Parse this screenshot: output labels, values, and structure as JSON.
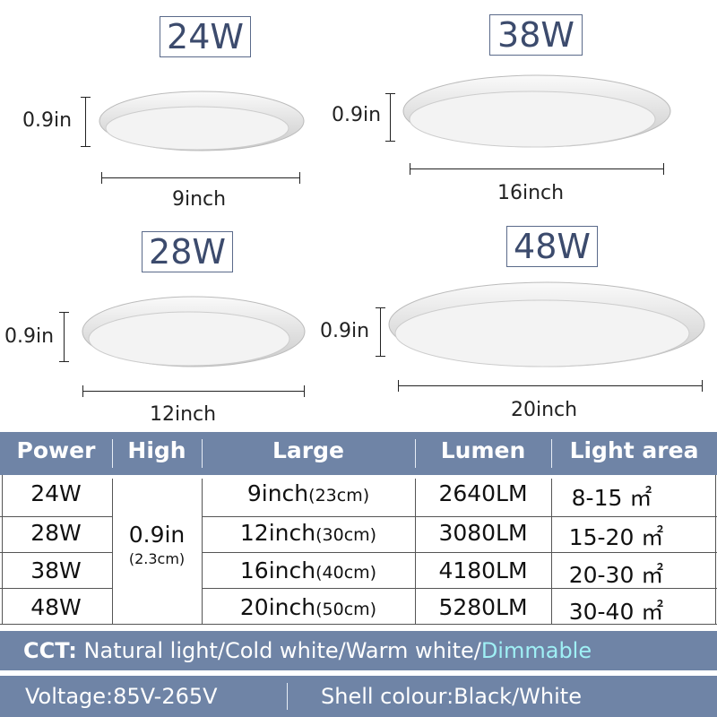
{
  "products": [
    {
      "power": "24W",
      "height": "0.9in",
      "diameter": "9inch"
    },
    {
      "power": "38W",
      "height": "0.9in",
      "diameter": "16inch"
    },
    {
      "power": "28W",
      "height": "0.9in",
      "diameter": "12inch"
    },
    {
      "power": "48W",
      "height": "0.9in",
      "diameter": "20inch"
    }
  ],
  "table": {
    "headers": [
      "Power",
      "High",
      "Large",
      "Lumen",
      "Light area"
    ],
    "high": "0.9in",
    "high_cm": "(2.3cm)",
    "rows": [
      {
        "power": "24W",
        "large": "9inch",
        "large_cm": "(23cm)",
        "lumen": "2640LM",
        "area": "8-15 ㎡"
      },
      {
        "power": "28W",
        "large": "12inch",
        "large_cm": "(30cm)",
        "lumen": "3080LM",
        "area": "15-20 ㎡"
      },
      {
        "power": "38W",
        "large": "16inch",
        "large_cm": "(40cm)",
        "lumen": "4180LM",
        "area": "20-30 ㎡"
      },
      {
        "power": "48W",
        "large": "20inch",
        "large_cm": "(50cm)",
        "lumen": "5280LM",
        "area": "30-40 ㎡"
      }
    ]
  },
  "cct": {
    "label": "CCT:",
    "options": "Natural light/Cold white/Warm white/",
    "highlight": "Dimmable",
    "highlight_color": "#9ff0f5"
  },
  "voltage": "Voltage:85V-265V",
  "shell": "Shell colour:Black/White",
  "colors": {
    "bar": "#6f84a6",
    "badge_text": "#3c4b6d"
  }
}
